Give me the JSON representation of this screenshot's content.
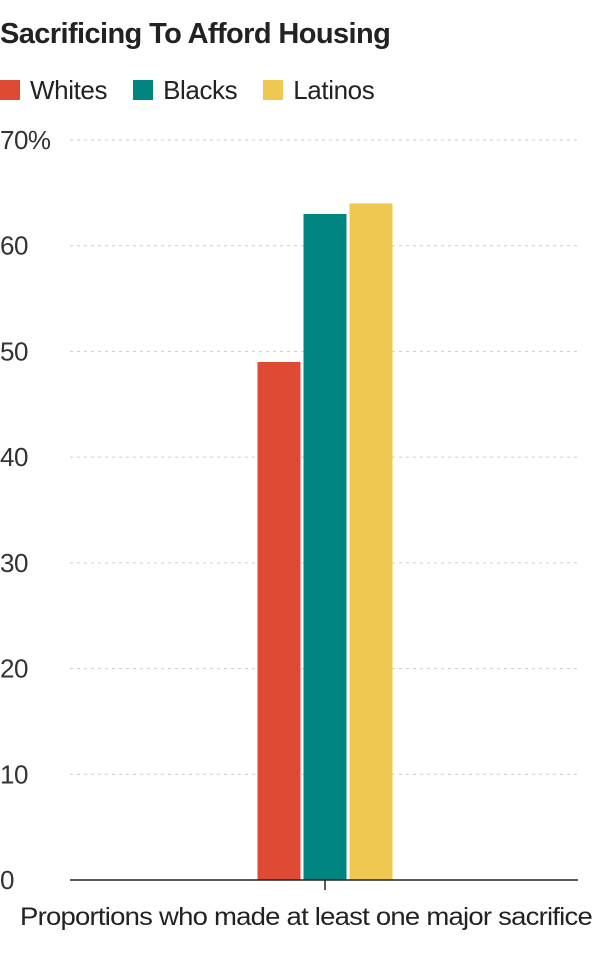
{
  "chart_data": {
    "type": "bar",
    "title": "Sacrificing To Afford Housing",
    "categories": [
      "Proportions who made at least one major sacrifice"
    ],
    "series": [
      {
        "name": "Whites",
        "color": "#de4a33",
        "values": [
          49
        ]
      },
      {
        "name": "Blacks",
        "color": "#008580",
        "values": [
          63
        ]
      },
      {
        "name": "Latinos",
        "color": "#efc852",
        "values": [
          64
        ]
      }
    ],
    "ylim": [
      0,
      70
    ],
    "yticks": [
      0,
      10,
      20,
      30,
      40,
      50,
      60,
      70
    ],
    "ytick_labels": [
      "0",
      "10",
      "20",
      "30",
      "40",
      "50",
      "60",
      "70%"
    ],
    "xlabel": "",
    "ylabel": "",
    "grid": true,
    "legend_position": "top-left"
  }
}
